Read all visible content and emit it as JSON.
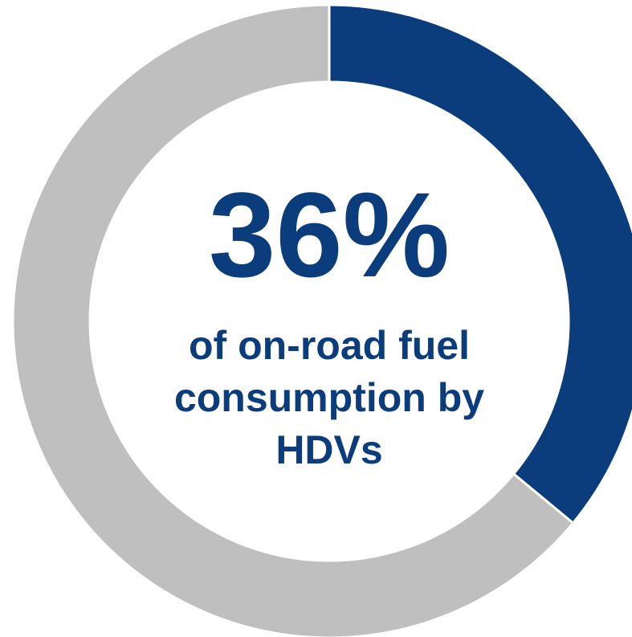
{
  "chart_data": {
    "type": "donut",
    "categories": [
      null,
      null
    ],
    "values": [
      36,
      64
    ],
    "value_labels": [
      "36%",
      null
    ],
    "colors": [
      "#0b3d7d",
      "#bfbfbf"
    ],
    "center_text": "of on-road fuel consumption by HDVs"
  }
}
